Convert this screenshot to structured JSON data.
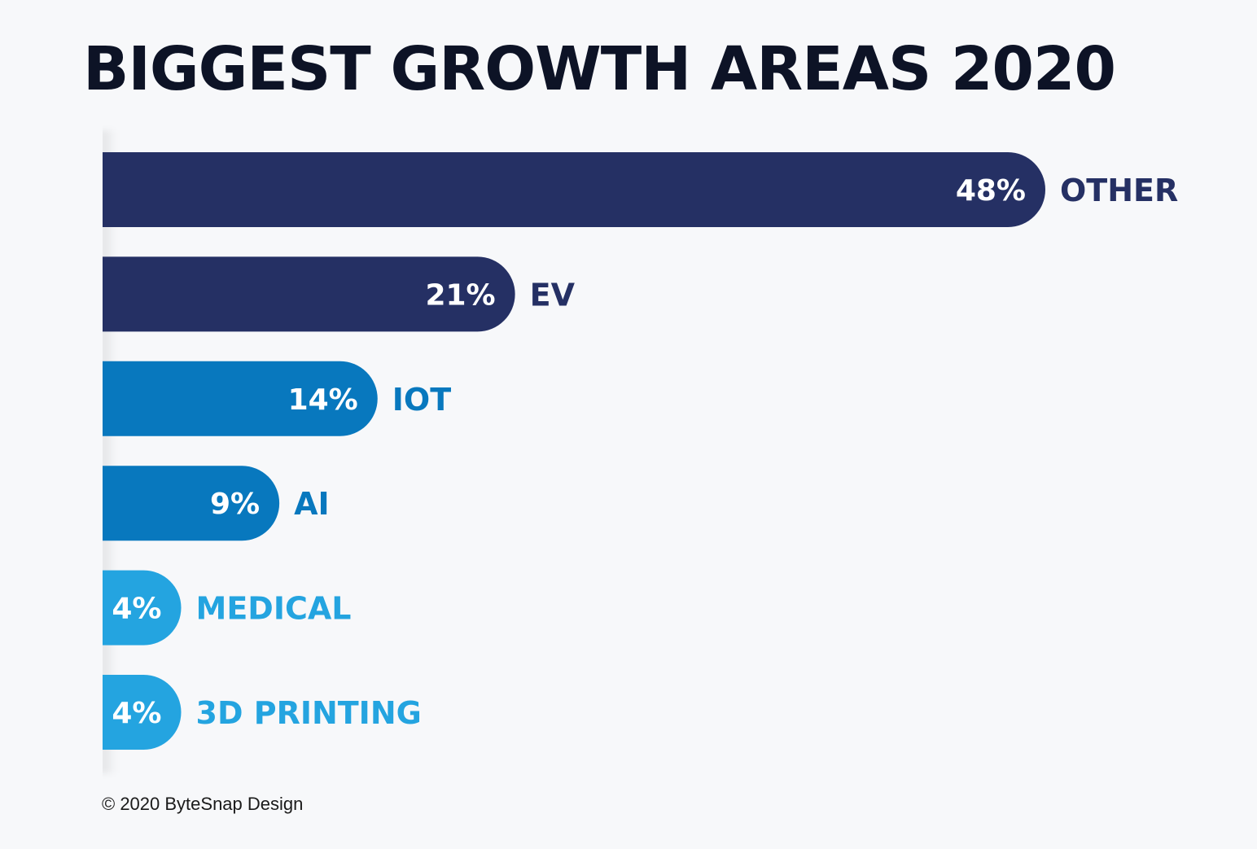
{
  "title": "BIGGEST GROWTH AREAS 2020",
  "footer": {
    "copyright": "© 2020 ByteSnap Design"
  },
  "colors": {
    "background": "#f7f8fa",
    "navy": "#253064",
    "blue": "#0878be",
    "light_blue": "#24a4e0"
  },
  "chart_data": {
    "type": "bar",
    "orientation": "horizontal",
    "title": "BIGGEST GROWTH AREAS 2020",
    "xlabel": "",
    "ylabel": "",
    "grid": false,
    "legend": "none",
    "xlim": [
      0,
      48
    ],
    "categories": [
      "OTHER",
      "EV",
      "IOT",
      "AI",
      "MEDICAL",
      "3D PRINTING"
    ],
    "values": [
      48,
      21,
      14,
      9,
      4,
      4
    ],
    "value_labels": [
      "48%",
      "21%",
      "14%",
      "9%",
      "4%",
      "4%"
    ],
    "bar_colors": [
      "#253064",
      "#253064",
      "#0878be",
      "#0878be",
      "#24a4e0",
      "#24a4e0"
    ]
  }
}
